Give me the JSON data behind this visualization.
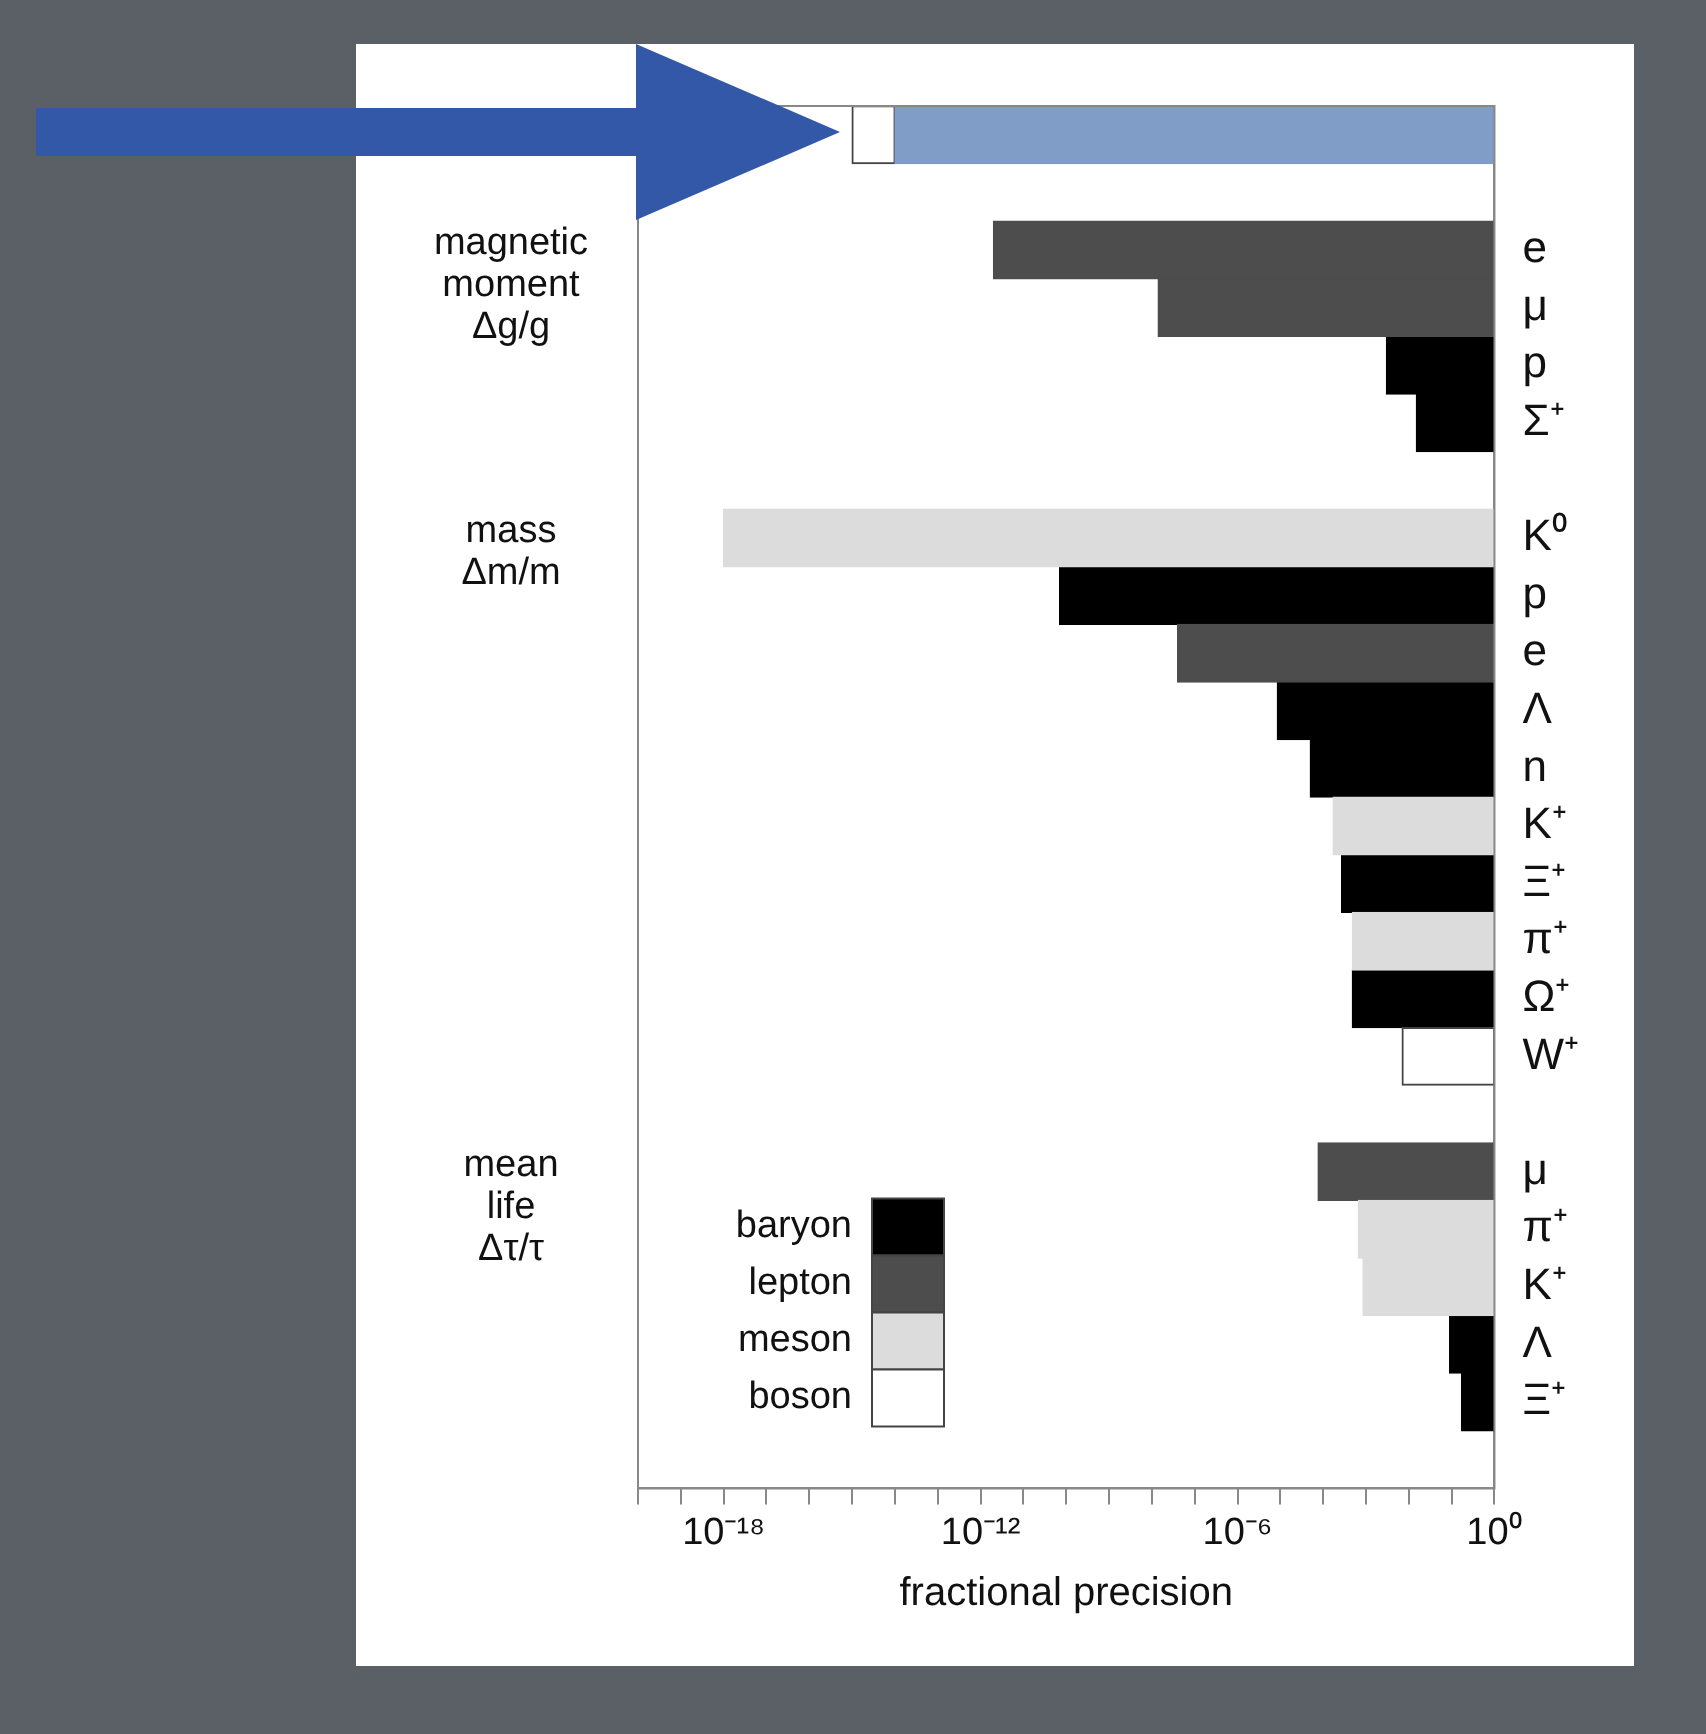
{
  "chart_data": {
    "type": "bar",
    "orientation": "horizontal",
    "xlabel": "fractional precision",
    "categories": [
      null,
      null,
      "e",
      "μ",
      "p",
      "Σ⁺",
      null,
      "K⁰",
      "p",
      "e",
      "Λ",
      "n",
      "K⁺",
      "Ξ⁺",
      "π⁺",
      "Ω⁺",
      "W⁺",
      null,
      "μ",
      "π⁺",
      "K⁺",
      "Λ",
      "Ξ⁺",
      null
    ],
    "series": [
      {
        "name": "baryon",
        "color": "#000000",
        "base": [
          null,
          null,
          null,
          null,
          0.003,
          0.015,
          null,
          null,
          7e-11,
          null,
          8.5e-06,
          5e-05,
          null,
          0.00027,
          null,
          0.00048,
          null,
          null,
          null,
          null,
          null,
          0.09,
          0.17,
          null
        ],
        "values": [
          null,
          null,
          null,
          null,
          0.997,
          0.985,
          null,
          null,
          0.99999999993,
          null,
          0.9999915,
          0.99995,
          null,
          0.99973,
          null,
          0.99952,
          null,
          null,
          null,
          null,
          null,
          0.91,
          0.83,
          null
        ]
      },
      {
        "name": "lepton",
        "color": "#4d4d4d",
        "base": [
          null,
          null,
          2e-12,
          1.4e-08,
          null,
          null,
          null,
          null,
          null,
          4e-08,
          null,
          null,
          null,
          null,
          null,
          null,
          null,
          null,
          7.6e-05,
          null,
          null,
          null,
          null,
          null
        ],
        "values": [
          null,
          null,
          0.999999999998,
          0.999999986,
          null,
          null,
          null,
          null,
          null,
          0.99999996,
          null,
          null,
          null,
          null,
          null,
          null,
          null,
          null,
          0.999924,
          null,
          null,
          null,
          null,
          null
        ]
      },
      {
        "name": "meson",
        "color": "#dcdcdc",
        "base": [
          null,
          null,
          null,
          null,
          null,
          null,
          null,
          1e-18,
          null,
          null,
          null,
          null,
          0.00017,
          null,
          0.00048,
          null,
          null,
          null,
          null,
          0.00066,
          0.00085,
          null,
          null,
          null
        ],
        "values": [
          null,
          null,
          null,
          null,
          null,
          null,
          null,
          1.0,
          null,
          null,
          null,
          null,
          0.99983,
          null,
          0.99952,
          null,
          null,
          null,
          null,
          0.99934,
          0.99915,
          null,
          null,
          null
        ]
      },
      {
        "name": "boson",
        "color": "#ffffff",
        "base": [
          null,
          null,
          null,
          null,
          null,
          null,
          null,
          null,
          null,
          null,
          null,
          null,
          null,
          null,
          null,
          null,
          0.007,
          null,
          null,
          null,
          null,
          null,
          null,
          null
        ],
        "values": [
          null,
          null,
          null,
          null,
          null,
          null,
          null,
          null,
          null,
          null,
          null,
          null,
          null,
          null,
          null,
          null,
          0.993,
          null,
          null,
          null,
          null,
          null,
          null,
          null
        ]
      },
      {
        "color": "#ffffff",
        "base": [
          1e-15,
          null,
          null,
          null,
          null,
          null,
          null,
          null,
          null,
          null,
          null,
          null,
          null,
          null,
          null,
          null,
          null,
          null,
          null,
          null,
          null,
          null,
          null,
          null
        ],
        "values": [
          9e-15,
          null,
          null,
          null,
          null,
          null,
          null,
          null,
          null,
          null,
          null,
          null,
          null,
          null,
          null,
          null,
          null,
          null,
          null,
          null,
          null,
          null,
          null,
          null
        ]
      },
      {
        "color": "#809dc8",
        "base": [
          1e-14,
          null,
          null,
          null,
          null,
          null,
          null,
          null,
          null,
          null,
          null,
          null,
          null,
          null,
          null,
          null,
          null,
          null,
          null,
          null,
          null,
          null,
          null,
          null
        ],
        "values": [
          0.99999999999999,
          null,
          null,
          null,
          null,
          null,
          null,
          null,
          null,
          null,
          null,
          null,
          null,
          null,
          null,
          null,
          null,
          null,
          null,
          null,
          null,
          null,
          null,
          null
        ]
      }
    ],
    "log": "x",
    "xlim": [
      1e-20,
      1
    ],
    "xticks": [
      {
        "value": 1e-20,
        "label": null
      },
      {
        "value": 1e-19,
        "label": null
      },
      {
        "value": 1e-18,
        "label": "10⁻¹⁸"
      },
      {
        "value": 1e-17,
        "label": null
      },
      {
        "value": 1e-16,
        "label": null
      },
      {
        "value": 1e-15,
        "label": null
      },
      {
        "value": 1e-14,
        "label": null
      },
      {
        "value": 1e-13,
        "label": null
      },
      {
        "value": 1e-12,
        "label": "10⁻¹²"
      },
      {
        "value": 1e-11,
        "label": null
      },
      {
        "value": 1e-10,
        "label": null
      },
      {
        "value": 1e-09,
        "label": null
      },
      {
        "value": 1e-08,
        "label": null
      },
      {
        "value": 1e-07,
        "label": null
      },
      {
        "value": 1e-06,
        "label": "10⁻⁶"
      },
      {
        "value": 1e-05,
        "label": null
      },
      {
        "value": 0.0001,
        "label": null
      },
      {
        "value": 0.001,
        "label": null
      },
      {
        "value": 0.01,
        "label": null
      },
      {
        "value": 0.1,
        "label": null
      },
      {
        "value": 1,
        "label": "10⁰"
      }
    ],
    "legend": "bottom left",
    "annotations": [
      "magnetic moment",
      "Δg/g",
      "mass",
      "Δm/m",
      "mean life",
      "Δτ/τ"
    ]
  }
}
